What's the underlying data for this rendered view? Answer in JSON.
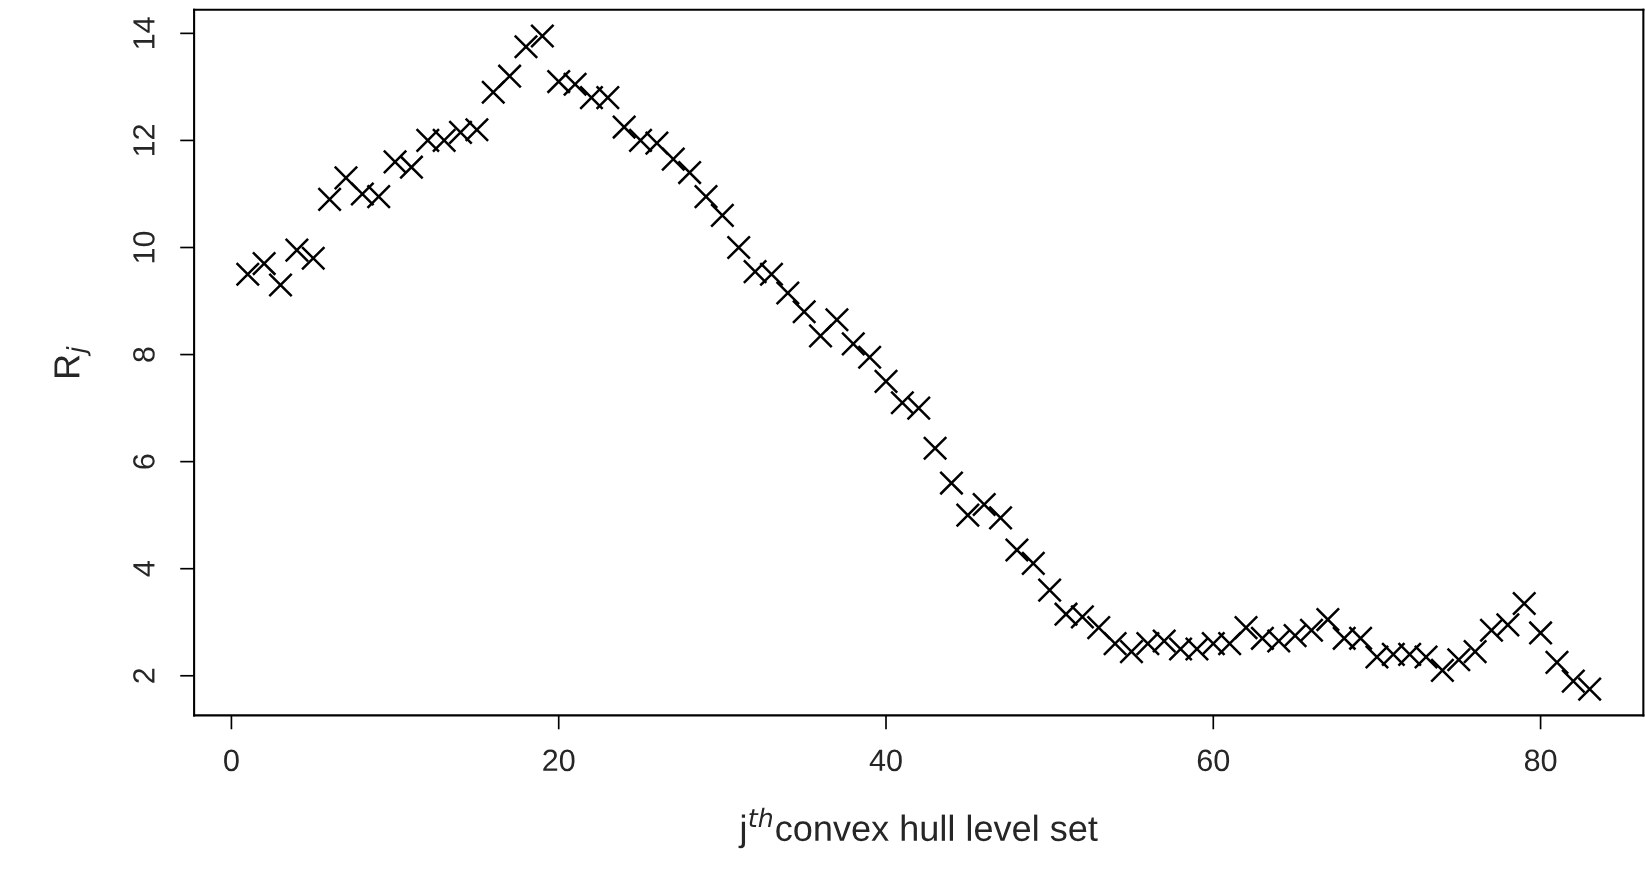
{
  "chart_data": {
    "type": "scatter",
    "xlabel": "j$^{th}$convex hull level set",
    "ylabel": "R$_{j}$",
    "x": [
      1,
      2,
      3,
      4,
      5,
      6,
      7,
      8,
      9,
      10,
      11,
      12,
      13,
      14,
      15,
      16,
      17,
      18,
      19,
      20,
      21,
      22,
      23,
      24,
      25,
      26,
      27,
      28,
      29,
      30,
      31,
      32,
      33,
      34,
      35,
      36,
      37,
      38,
      39,
      40,
      41,
      42,
      43,
      44,
      45,
      46,
      47,
      48,
      49,
      50,
      51,
      52,
      53,
      54,
      55,
      56,
      57,
      58,
      59,
      60,
      61,
      62,
      63,
      64,
      65,
      66,
      67,
      68,
      69,
      70,
      71,
      72,
      73,
      74,
      75,
      76,
      77,
      78,
      79,
      80,
      81,
      82,
      83
    ],
    "values": [
      9.5,
      9.7,
      9.3,
      9.95,
      9.8,
      10.9,
      11.3,
      11.0,
      10.95,
      11.6,
      11.5,
      12.0,
      12.0,
      12.15,
      12.2,
      12.9,
      13.2,
      13.75,
      13.95,
      13.1,
      13.05,
      12.8,
      12.8,
      12.25,
      12.0,
      11.95,
      11.65,
      11.4,
      10.95,
      10.6,
      10.0,
      9.55,
      9.5,
      9.15,
      8.8,
      8.35,
      8.65,
      8.2,
      7.95,
      7.5,
      7.1,
      7.0,
      6.25,
      5.6,
      5.0,
      5.2,
      4.95,
      4.35,
      4.1,
      3.6,
      3.15,
      3.1,
      2.9,
      2.6,
      2.45,
      2.6,
      2.65,
      2.5,
      2.5,
      2.6,
      2.6,
      2.9,
      2.7,
      2.65,
      2.75,
      2.85,
      3.05,
      2.7,
      2.7,
      2.35,
      2.4,
      2.4,
      2.35,
      2.1,
      2.3,
      2.45,
      2.85,
      2.95,
      3.35,
      2.8,
      2.25,
      1.9,
      1.75
    ],
    "color": "#000000",
    "marker": "cross",
    "xlim": [
      -2.28,
      86.28
    ],
    "ylim": [
      1.26,
      14.44
    ],
    "xticks": [
      0,
      20,
      40,
      60,
      80
    ],
    "yticks": [
      2,
      4,
      6,
      8,
      10,
      12,
      14
    ],
    "grid": false,
    "legend": false
  }
}
